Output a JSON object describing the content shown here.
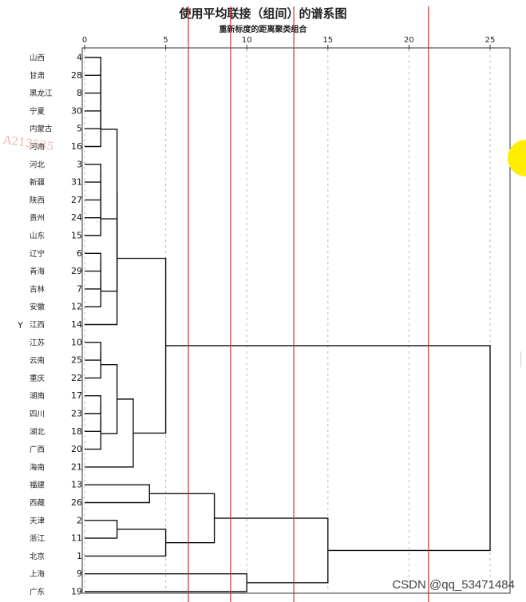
{
  "chart_data": {
    "type": "dendrogram",
    "title": "使用平均联接（组间）的谱系图",
    "xlabel": "重新标度的距离聚类组合",
    "ylabel": "Y",
    "xticks": [
      0,
      5,
      10,
      15,
      20,
      25
    ],
    "xlim": [
      0,
      25
    ],
    "leaves": [
      {
        "name": "山西",
        "id": "4"
      },
      {
        "name": "甘肃",
        "id": "28"
      },
      {
        "name": "黑龙江",
        "id": "8"
      },
      {
        "name": "宁夏",
        "id": "30"
      },
      {
        "name": "内蒙古",
        "id": "5"
      },
      {
        "name": "河南",
        "id": "16"
      },
      {
        "name": "河北",
        "id": "3"
      },
      {
        "name": "新疆",
        "id": "31"
      },
      {
        "name": "陕西",
        "id": "27"
      },
      {
        "name": "贵州",
        "id": "24"
      },
      {
        "name": "山东",
        "id": "15"
      },
      {
        "name": "辽宁",
        "id": "6"
      },
      {
        "name": "青海",
        "id": "29"
      },
      {
        "name": "吉林",
        "id": "7"
      },
      {
        "name": "安徽",
        "id": "12"
      },
      {
        "name": "江西",
        "id": "14"
      },
      {
        "name": "江苏",
        "id": "10"
      },
      {
        "name": "云南",
        "id": "25"
      },
      {
        "name": "重庆",
        "id": "22"
      },
      {
        "name": "湖南",
        "id": "17"
      },
      {
        "name": "四川",
        "id": "23"
      },
      {
        "name": "湖北",
        "id": "18"
      },
      {
        "name": "广西",
        "id": "20"
      },
      {
        "name": "海南",
        "id": "21"
      },
      {
        "name": "福建",
        "id": "13"
      },
      {
        "name": "西藏",
        "id": "26"
      },
      {
        "name": "天津",
        "id": "2"
      },
      {
        "name": "浙江",
        "id": "11"
      },
      {
        "name": "北京",
        "id": "1"
      },
      {
        "name": "上海",
        "id": "9"
      },
      {
        "name": "广东",
        "id": "19"
      }
    ],
    "merges": [
      {
        "children": [
          "L0",
          "L1"
        ],
        "distance": 1
      },
      {
        "children": [
          "M0",
          "L2"
        ],
        "distance": 1
      },
      {
        "children": [
          "M1",
          "L3"
        ],
        "distance": 1
      },
      {
        "children": [
          "M2",
          "L4"
        ],
        "distance": 1
      },
      {
        "children": [
          "M3",
          "L5"
        ],
        "distance": 1
      },
      {
        "children": [
          "L6",
          "L7"
        ],
        "distance": 1
      },
      {
        "children": [
          "M5",
          "L8"
        ],
        "distance": 1
      },
      {
        "children": [
          "M6",
          "L9"
        ],
        "distance": 1
      },
      {
        "children": [
          "M7",
          "L10"
        ],
        "distance": 1
      },
      {
        "children": [
          "L11",
          "L12"
        ],
        "distance": 1
      },
      {
        "children": [
          "M9",
          "L13"
        ],
        "distance": 1
      },
      {
        "children": [
          "M10",
          "L14"
        ],
        "distance": 1
      },
      {
        "children": [
          "M8",
          "M11"
        ],
        "distance": 2
      },
      {
        "children": [
          "M4",
          "M12"
        ],
        "distance": 2
      },
      {
        "children": [
          "M13",
          "L15"
        ],
        "distance": 2
      },
      {
        "children": [
          "L16",
          "L17"
        ],
        "distance": 1
      },
      {
        "children": [
          "M15",
          "L18"
        ],
        "distance": 1
      },
      {
        "children": [
          "L19",
          "L20"
        ],
        "distance": 1
      },
      {
        "children": [
          "M17",
          "L21"
        ],
        "distance": 1
      },
      {
        "children": [
          "M18",
          "L22"
        ],
        "distance": 1
      },
      {
        "children": [
          "M16",
          "M19"
        ],
        "distance": 2
      },
      {
        "children": [
          "M20",
          "L23"
        ],
        "distance": 3
      },
      {
        "children": [
          "M14",
          "M21"
        ],
        "distance": 5
      },
      {
        "children": [
          "L24",
          "L25"
        ],
        "distance": 4
      },
      {
        "children": [
          "L26",
          "L27"
        ],
        "distance": 2
      },
      {
        "children": [
          "M24",
          "L28"
        ],
        "distance": 5
      },
      {
        "children": [
          "M23",
          "M25"
        ],
        "distance": 8
      },
      {
        "children": [
          "L29",
          "L30"
        ],
        "distance": 10
      },
      {
        "children": [
          "M26",
          "M27"
        ],
        "distance": 15
      },
      {
        "children": [
          "M22",
          "M28"
        ],
        "distance": 25
      }
    ],
    "cut_lines": [
      6.4,
      9,
      12.9,
      21.2
    ],
    "grid": "dashed-vertical",
    "colors": {
      "tree": "#111111",
      "cut_line": "#c0392b",
      "grid": "#bbbbbb"
    }
  },
  "watermarks": {
    "left": "A213535",
    "bottom_right": "CSDN @qq_53471484"
  }
}
